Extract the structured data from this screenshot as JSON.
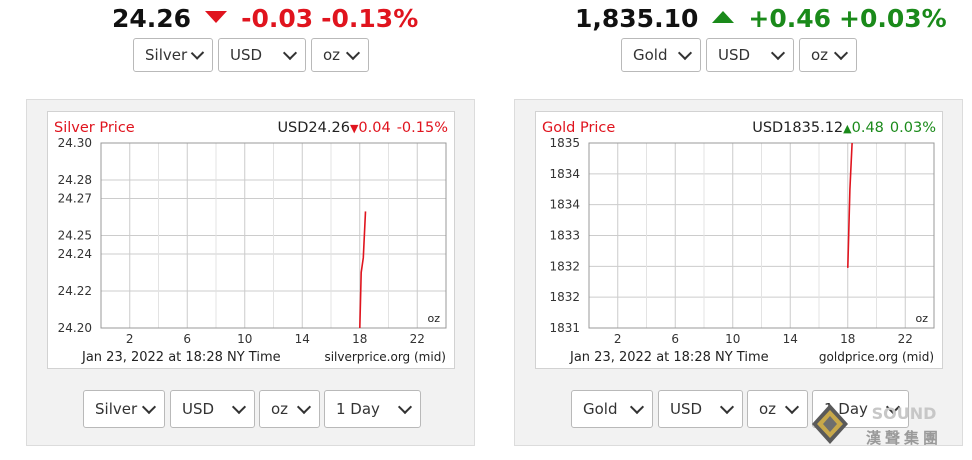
{
  "silver_ticker": {
    "price": "24.26",
    "change": "-0.03",
    "change_pct": "-0.13%",
    "direction": "down"
  },
  "gold_ticker": {
    "price": "1,835.10",
    "change": "+0.46",
    "change_pct": "+0.03%",
    "direction": "up"
  },
  "top_selects": {
    "silver": {
      "metal": "Silver",
      "currency": "USD",
      "unit": "oz"
    },
    "gold": {
      "metal": "Gold",
      "currency": "USD",
      "unit": "oz"
    }
  },
  "bottom_selects": {
    "silver": {
      "metal": "Silver",
      "currency": "USD",
      "unit": "oz",
      "range": "1 Day"
    },
    "gold": {
      "metal": "Gold",
      "currency": "USD",
      "unit": "oz",
      "range": "1 Day"
    }
  },
  "colors": {
    "down": "#e0141e",
    "up": "#1a8a1a",
    "line": "#e0141e",
    "grid": "#cccccc"
  },
  "logo": {
    "text": "SOUND",
    "subtitle": "漢聲集團"
  },
  "chart_data": [
    {
      "type": "line",
      "title": "Silver Price",
      "quote": {
        "prefix": "USD24.26",
        "change": "0.04",
        "change_pct": "-0.15%",
        "direction": "down"
      },
      "xlabel": "Jan 23, 2022 at 18:28 NY Time",
      "source": "silverprice.org (mid)",
      "unit_label": "oz",
      "xlim": [
        0,
        24
      ],
      "ylim": [
        24.2,
        24.3
      ],
      "x_ticks": [
        2,
        6,
        10,
        14,
        18,
        22
      ],
      "y_ticks": [
        24.2,
        24.22,
        24.24,
        24.25,
        24.27,
        24.28,
        24.3
      ],
      "y_tick_labels": [
        "24.20",
        "24.22",
        "24.24",
        "24.25",
        "24.27",
        "24.28",
        "24.30"
      ],
      "grid": true,
      "series": [
        {
          "x": [
            18.0,
            18.1,
            18.25,
            18.4
          ],
          "y": [
            24.2,
            24.23,
            24.238,
            24.263
          ]
        }
      ]
    },
    {
      "type": "line",
      "title": "Gold Price",
      "quote": {
        "prefix": "USD1835.12",
        "change": "0.48",
        "change_pct": "0.03%",
        "direction": "up"
      },
      "xlabel": "Jan 23, 2022 at 18:28 NY Time",
      "source": "goldprice.org (mid)",
      "unit_label": "oz",
      "xlim": [
        0,
        24
      ],
      "ylim": [
        1831,
        1835
      ],
      "x_ticks": [
        2,
        6,
        10,
        14,
        18,
        22
      ],
      "y_ticks": [
        1831,
        1831.667,
        1832.333,
        1833,
        1833.667,
        1834.333,
        1835
      ],
      "y_tick_labels": [
        "1831",
        "1832",
        "1832",
        "1833",
        "1834",
        "1834",
        "1835"
      ],
      "grid": true,
      "series": [
        {
          "x": [
            18.0,
            18.15,
            18.3
          ],
          "y": [
            1832.3,
            1834.0,
            1835.0
          ]
        }
      ]
    }
  ]
}
